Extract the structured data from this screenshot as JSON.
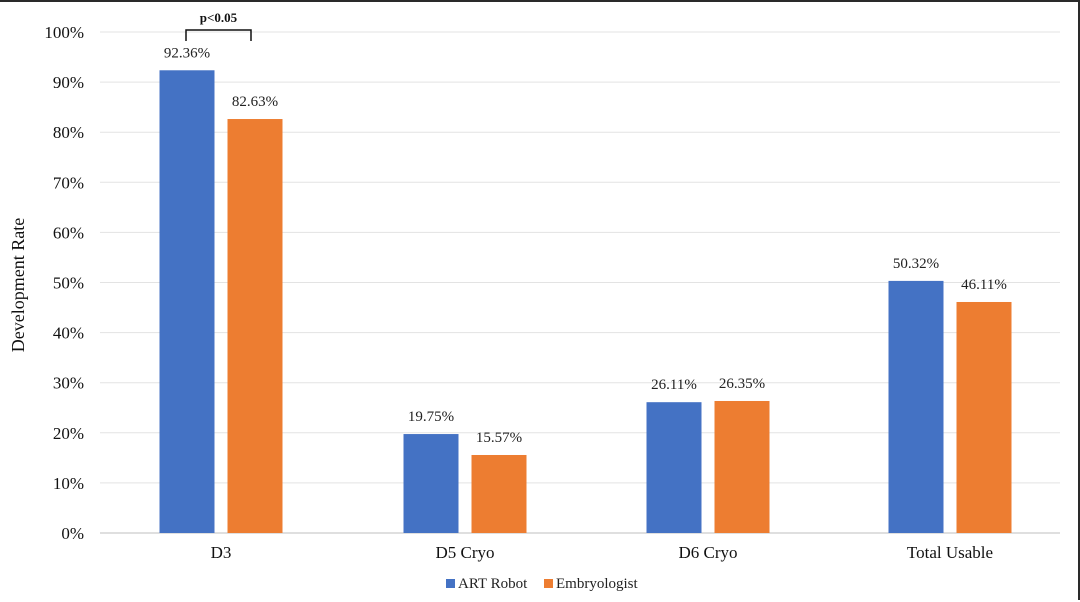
{
  "chart_data": {
    "type": "bar",
    "title": "",
    "xlabel": "",
    "ylabel": "Development Rate",
    "ylim": [
      0,
      100
    ],
    "yticks": [
      "0%",
      "10%",
      "20%",
      "30%",
      "40%",
      "50%",
      "60%",
      "70%",
      "80%",
      "90%",
      "100%"
    ],
    "categories": [
      "D3",
      "D5 Cryo",
      "D6 Cryo",
      "Total Usable"
    ],
    "series": [
      {
        "name": "ART Robot",
        "color": "#4472c4",
        "values": [
          92.36,
          19.75,
          26.11,
          50.32
        ],
        "labels": [
          "92.36%",
          "19.75%",
          "26.11%",
          "50.32%"
        ]
      },
      {
        "name": "Embryologist",
        "color": "#ed7d31",
        "values": [
          82.63,
          15.57,
          26.35,
          46.11
        ],
        "labels": [
          "82.63%",
          "15.57%",
          "26.35%",
          "46.11%"
        ]
      }
    ],
    "annotations": [
      {
        "text": "p<0.05",
        "category": "D3"
      }
    ],
    "grid": true,
    "legend_position": "bottom"
  }
}
